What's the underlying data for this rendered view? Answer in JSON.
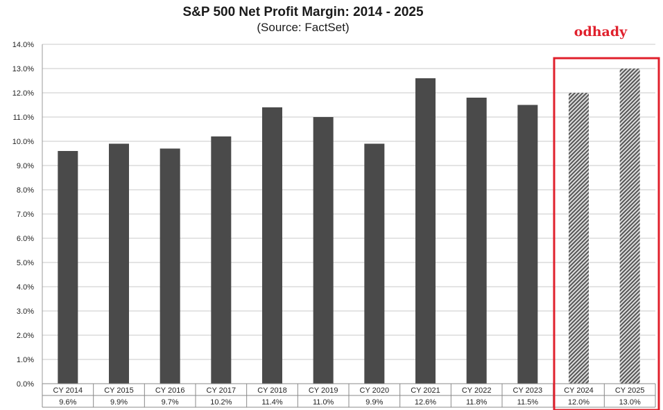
{
  "chart_data": {
    "type": "bar",
    "title": "S&P 500 Net Profit Margin: 2014 - 2025",
    "subtitle": "(Source: FactSet)",
    "categories": [
      "CY 2014",
      "CY 2015",
      "CY 2016",
      "CY 2017",
      "CY 2018",
      "CY 2019",
      "CY 2020",
      "CY 2021",
      "CY 2022",
      "CY 2023",
      "CY 2024",
      "CY 2025"
    ],
    "values": [
      9.6,
      9.9,
      9.7,
      10.2,
      11.4,
      11.0,
      9.9,
      12.6,
      11.8,
      11.5,
      12.0,
      13.0
    ],
    "value_labels": [
      "9.6%",
      "9.9%",
      "9.7%",
      "10.2%",
      "11.4%",
      "11.0%",
      "9.9%",
      "12.6%",
      "11.8%",
      "11.5%",
      "12.0%",
      "13.0%"
    ],
    "estimate_flags": [
      false,
      false,
      false,
      false,
      false,
      false,
      false,
      false,
      false,
      false,
      true,
      true
    ],
    "ylim": [
      0,
      14
    ],
    "yticks": [
      "0.0%",
      "1.0%",
      "2.0%",
      "3.0%",
      "4.0%",
      "5.0%",
      "6.0%",
      "7.0%",
      "8.0%",
      "9.0%",
      "10.0%",
      "11.0%",
      "12.0%",
      "13.0%",
      "14.0%"
    ],
    "grid": true,
    "annotation": "odhady",
    "colors": {
      "actual": "#4a4a4a",
      "estimate_dark": "#555555",
      "estimate_light": "#dddddd",
      "highlight": "#e0202c",
      "grid": "#c8c8c8"
    }
  }
}
